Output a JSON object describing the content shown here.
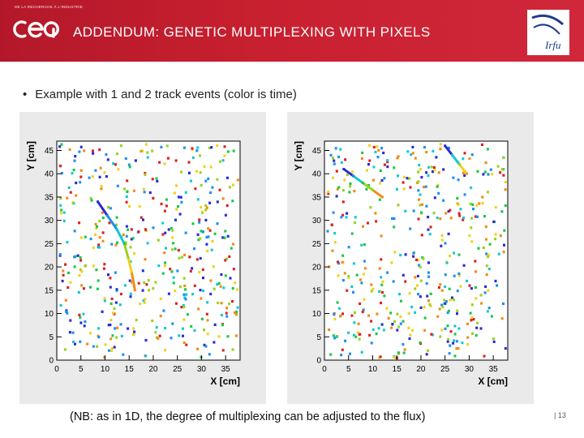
{
  "header": {
    "org_tag": "DE LA RECHERCHE À L'INDUSTRIE",
    "logo_text": "cea",
    "title": "ADDENDUM: GENETIC MULTIPLEXING WITH PIXELS",
    "partner_logo_text": "Irfu"
  },
  "content": {
    "bullet": "Example with 1 and 2 track events (color is time)",
    "footnote": "(NB: as in 1D, the degree of multiplexing can be adjusted to the flux)",
    "page_number": "| 13"
  },
  "colors": {
    "header_red": "#c8202f",
    "hit_palette": [
      "#2a2ad4",
      "#1e8ef0",
      "#14c8d2",
      "#18c848",
      "#9ad21e",
      "#f0d21c",
      "#f08c14",
      "#dc2020"
    ]
  },
  "chart_data": [
    {
      "type": "scatter",
      "title": "",
      "xlabel": "X [cm]",
      "ylabel": "Y [cm]",
      "xlim": [
        0,
        38
      ],
      "ylim": [
        0,
        47
      ],
      "xticks": [
        "0",
        "5",
        "10",
        "15",
        "20",
        "25",
        "30",
        "35"
      ],
      "yticks": [
        "0",
        "5",
        "10",
        "15",
        "20",
        "25",
        "30",
        "35",
        "40",
        "45"
      ],
      "tracks": [
        {
          "x": [
            8.5,
            10.5,
            12.5,
            14.0,
            14.8,
            15.5,
            16.2
          ],
          "y": [
            34,
            31,
            28,
            25,
            22,
            19,
            15
          ]
        }
      ]
    },
    {
      "type": "scatter",
      "title": "",
      "xlabel": "X [cm]",
      "ylabel": "Y [cm]",
      "xlim": [
        0,
        38
      ],
      "ylim": [
        0,
        47
      ],
      "xticks": [
        "0",
        "5",
        "10",
        "15",
        "20",
        "25",
        "30",
        "35"
      ],
      "yticks": [
        "0",
        "5",
        "10",
        "15",
        "20",
        "25",
        "30",
        "35",
        "40",
        "45"
      ],
      "tracks": [
        {
          "x": [
            4,
            6,
            8,
            10,
            12
          ],
          "y": [
            41,
            39.5,
            38,
            36.5,
            35
          ]
        },
        {
          "x": [
            25,
            26.5,
            28,
            29.5
          ],
          "y": [
            46,
            44,
            42,
            40
          ]
        }
      ]
    }
  ]
}
